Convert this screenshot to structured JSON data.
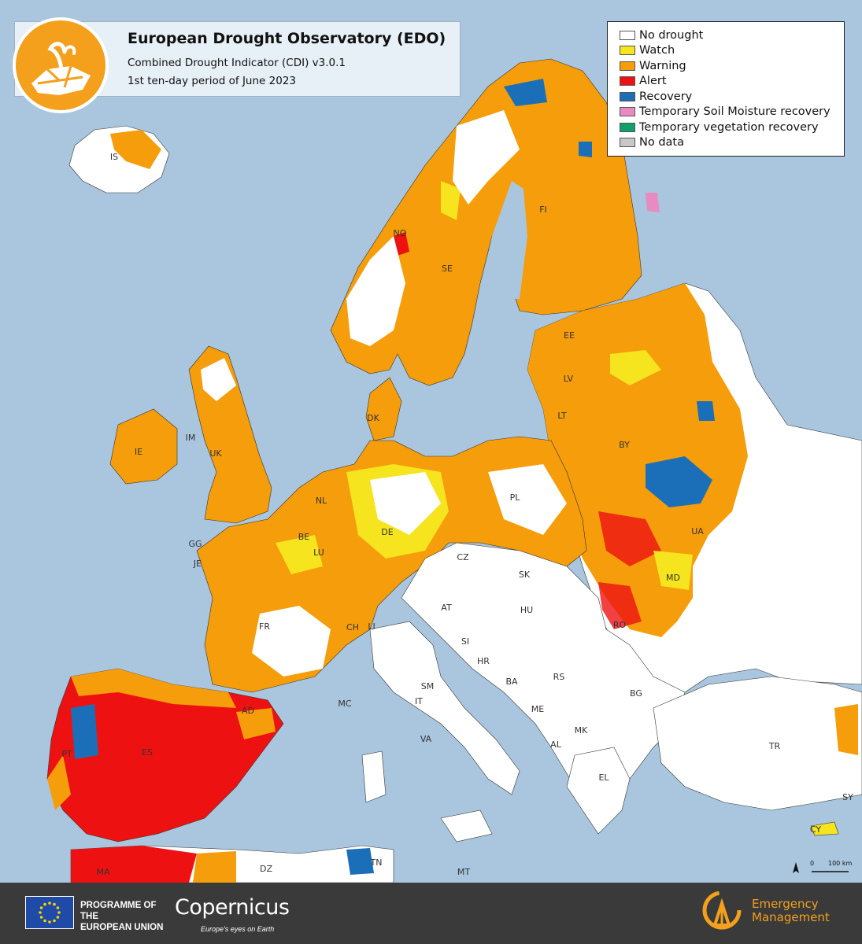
{
  "title": {
    "main": "European Drought Observatory (EDO)",
    "indicator": "Combined Drought Indicator (CDI) v3.0.1",
    "period": "1st ten-day period of June 2023"
  },
  "legend": {
    "items": [
      {
        "label": "No drought",
        "color": "#ffffff"
      },
      {
        "label": "Watch",
        "color": "#f5e41e"
      },
      {
        "label": "Warning",
        "color": "#f59d0a"
      },
      {
        "label": "Alert",
        "color": "#ee1111"
      },
      {
        "label": "Recovery",
        "color": "#1b6fb8"
      },
      {
        "label": "Temporary Soil Moisture recovery",
        "color": "#e78bc1"
      },
      {
        "label": "Temporary vegetation recovery",
        "color": "#12a06a"
      },
      {
        "label": "No data",
        "color": "#c8c8c8"
      }
    ]
  },
  "country_labels": [
    "IS",
    "NO",
    "SE",
    "FI",
    "EE",
    "LV",
    "LT",
    "DK",
    "IE",
    "UK",
    "IM",
    "NL",
    "BE",
    "LU",
    "DE",
    "PL",
    "BY",
    "UA",
    "GG",
    "JE",
    "FR",
    "CH",
    "LI",
    "CZ",
    "SK",
    "AT",
    "HU",
    "MD",
    "RO",
    "SI",
    "HR",
    "BA",
    "RS",
    "ME",
    "AL",
    "MK",
    "BG",
    "EL",
    "TR",
    "SY",
    "CY",
    "IT",
    "SM",
    "VA",
    "MC",
    "AD",
    "ES",
    "PT",
    "MA",
    "DZ",
    "TN",
    "MT"
  ],
  "scale": {
    "zero": "0",
    "distance": "100 km",
    "north": "N"
  },
  "footer": {
    "programme_line1": "PROGRAMME OF THE",
    "programme_line2": "EUROPEAN UNION",
    "copernicus": "Copernicus",
    "copernicus_tagline": "Europe's eyes on Earth",
    "em_line1": "Emergency",
    "em_line2": "Management"
  },
  "colors": {
    "sea": "#a9c6de",
    "outside_land": "#ffffff",
    "footer_bg": "#3a3a3a",
    "accent": "#f4a01c"
  }
}
